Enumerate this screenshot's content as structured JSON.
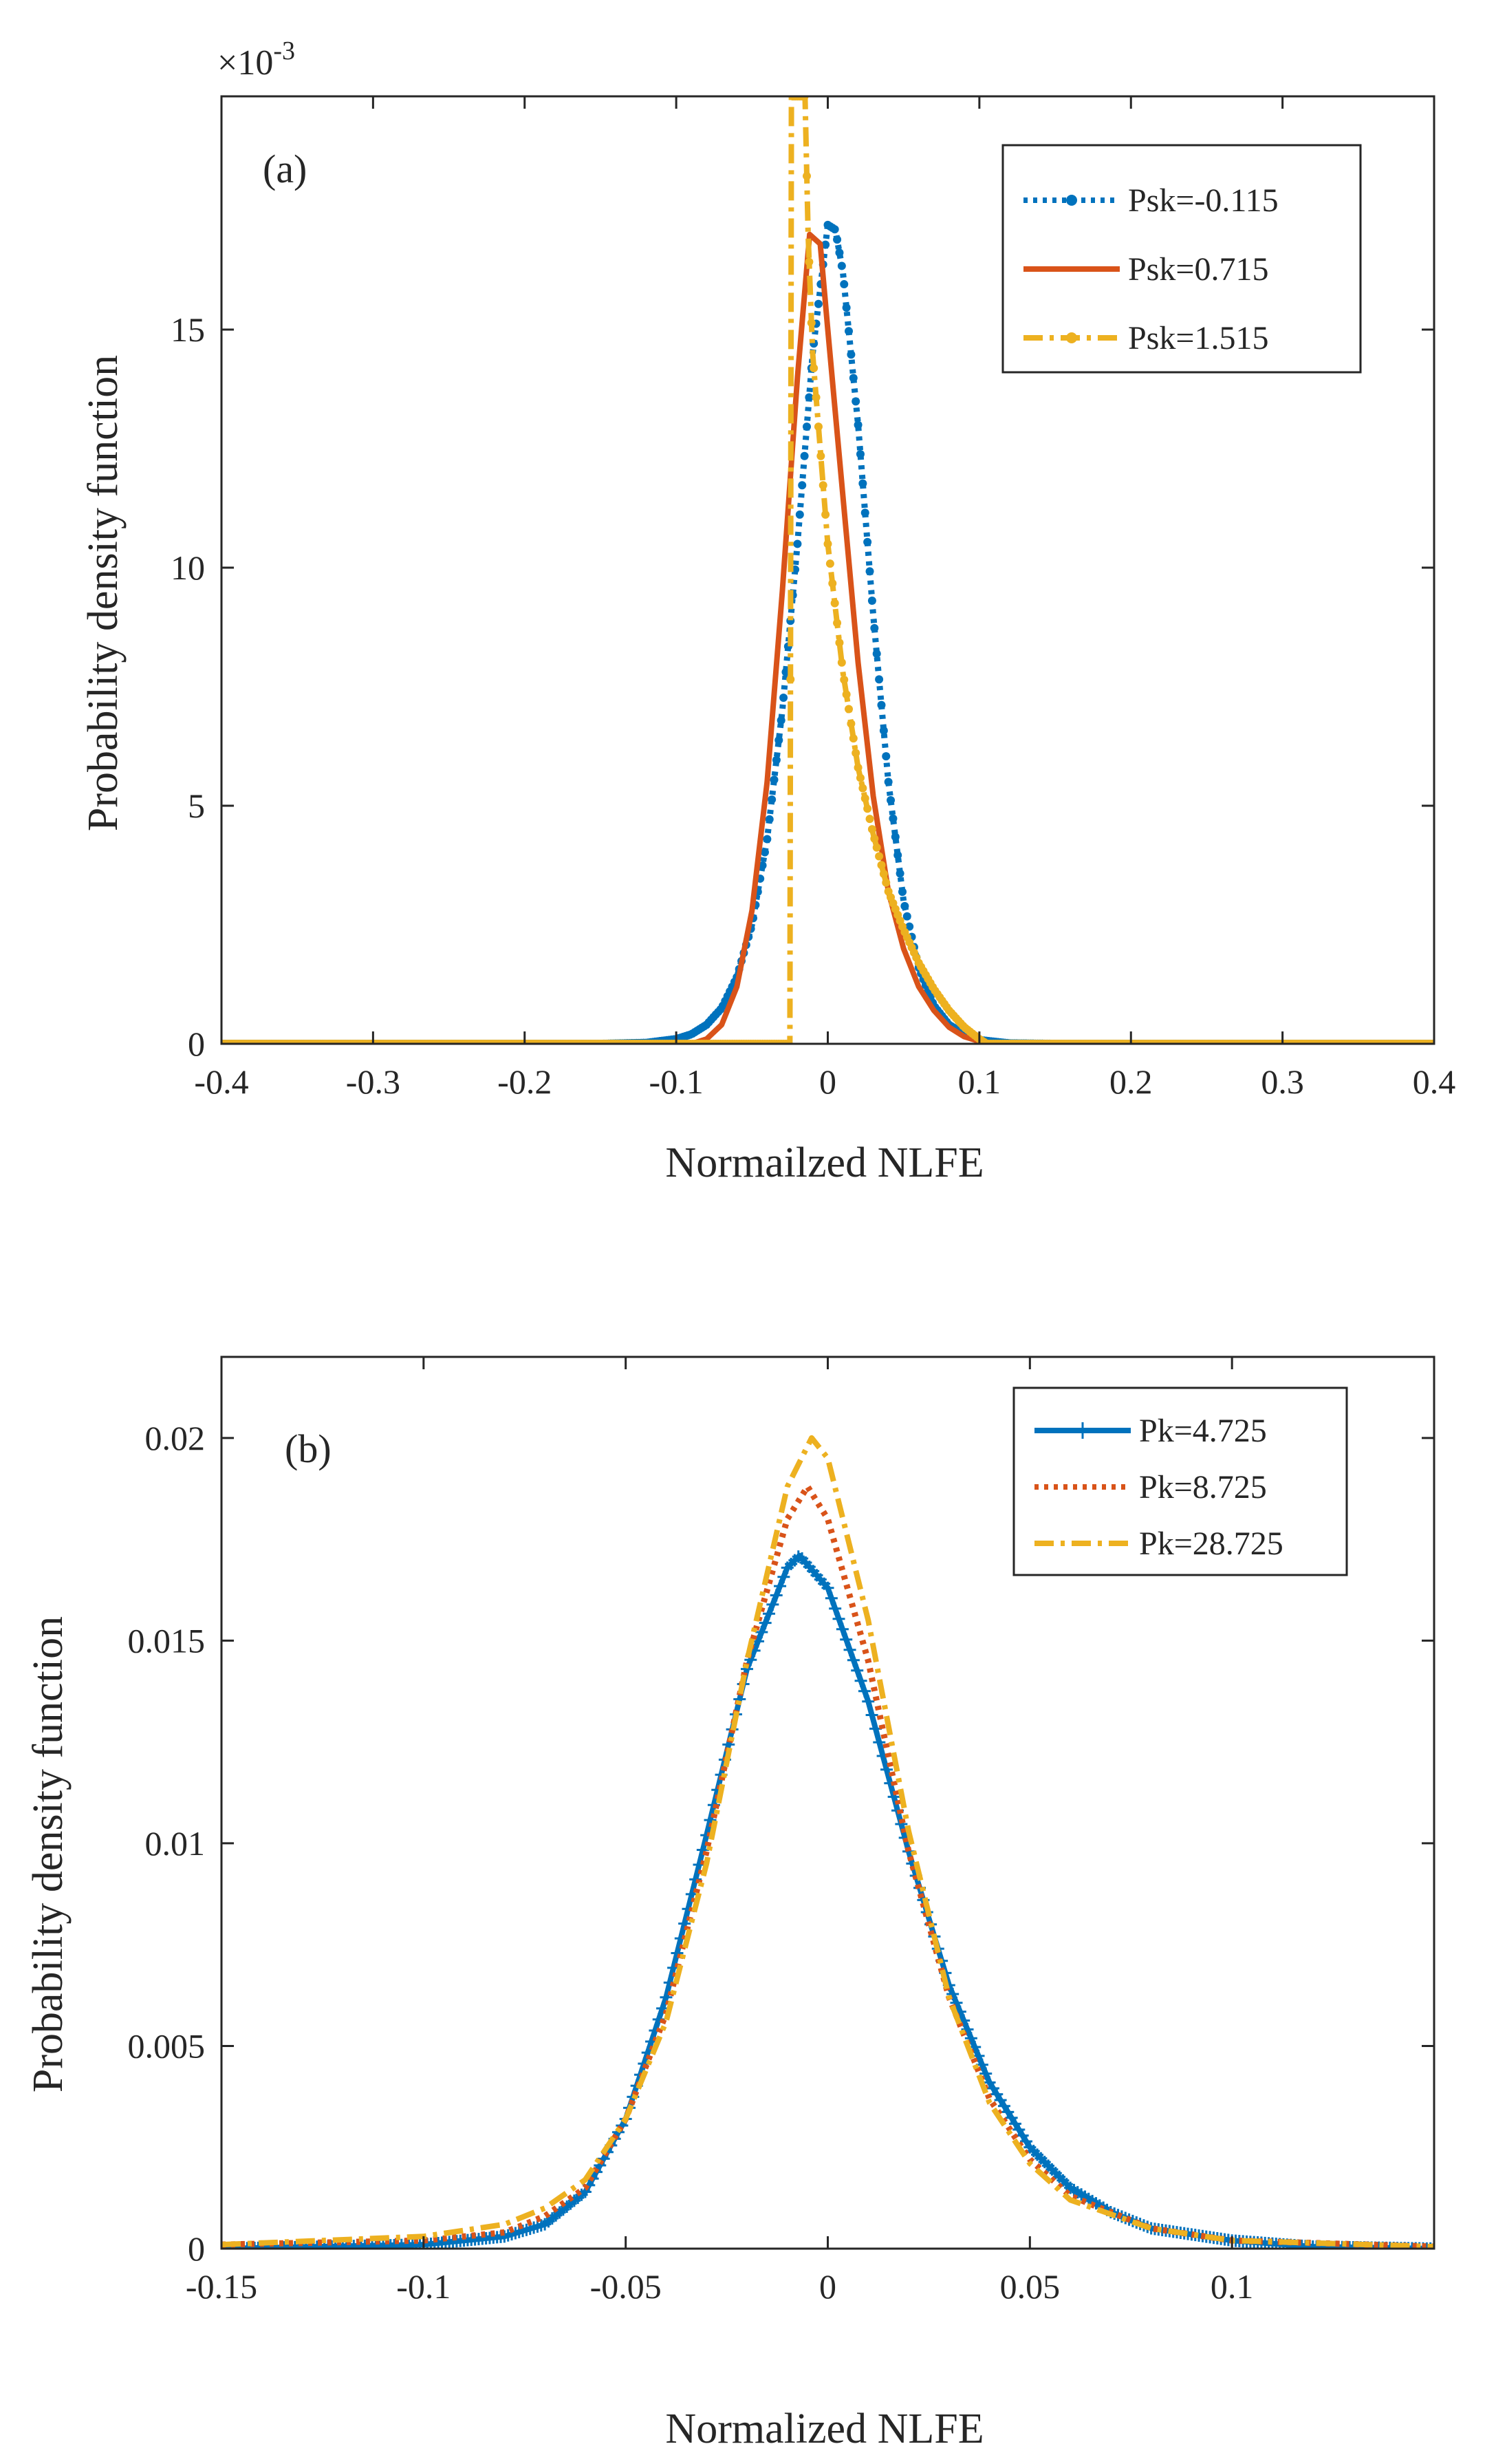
{
  "figure": {
    "panels": [
      {
        "id": "a",
        "panel_label": "(a)",
        "xlabel": "Normailzed NLFE",
        "ylabel": "Probability density function",
        "exponent_base": "×10",
        "exponent_power": "-3"
      },
      {
        "id": "b",
        "panel_label": "(b)",
        "xlabel": "Normalized NLFE",
        "ylabel": "Probability density function"
      }
    ]
  },
  "chart_data": [
    {
      "type": "line",
      "panel_label": "(a)",
      "xlabel": "Normailzed NLFE",
      "ylabel": "Probability density function",
      "y_exponent": "×10^-3",
      "xlim": [
        -0.4,
        0.4
      ],
      "ylim": [
        0,
        19.9
      ],
      "x_ticks": [
        -0.4,
        -0.3,
        -0.2,
        -0.1,
        0,
        0.1,
        0.2,
        0.3,
        0.4
      ],
      "x_tick_labels": [
        "-0.4",
        "-0.3",
        "-0.2",
        "-0.1",
        "0",
        "0.1",
        "0.2",
        "0.3",
        "0.4"
      ],
      "y_ticks": [
        0,
        5,
        10,
        15
      ],
      "y_tick_labels": [
        "0",
        "5",
        "10",
        "15"
      ],
      "grid": false,
      "legend_position": "top-right",
      "series": [
        {
          "name": "Psk=-0.115",
          "color": "#0072BD",
          "style": "dotted-with-markers",
          "points": [
            [
              -0.4,
              0
            ],
            [
              -0.15,
              0
            ],
            [
              -0.12,
              0.02
            ],
            [
              -0.1,
              0.1
            ],
            [
              -0.09,
              0.2
            ],
            [
              -0.08,
              0.4
            ],
            [
              -0.07,
              0.75
            ],
            [
              -0.06,
              1.4
            ],
            [
              -0.05,
              2.5
            ],
            [
              -0.04,
              4.3
            ],
            [
              -0.03,
              7.0
            ],
            [
              -0.02,
              10.5
            ],
            [
              -0.01,
              14.5
            ],
            [
              0,
              17.2
            ],
            [
              0.005,
              17.1
            ],
            [
              0.01,
              16.2
            ],
            [
              0.02,
              13.0
            ],
            [
              0.03,
              9.0
            ],
            [
              0.04,
              5.5
            ],
            [
              0.05,
              3.0
            ],
            [
              0.06,
              1.6
            ],
            [
              0.07,
              0.8
            ],
            [
              0.08,
              0.4
            ],
            [
              0.09,
              0.2
            ],
            [
              0.1,
              0.08
            ],
            [
              0.12,
              0.01
            ],
            [
              0.15,
              0
            ],
            [
              0.4,
              0
            ]
          ]
        },
        {
          "name": "Psk=0.715",
          "color": "#D95319",
          "style": "solid",
          "points": [
            [
              -0.4,
              0
            ],
            [
              -0.09,
              0
            ],
            [
              -0.08,
              0.1
            ],
            [
              -0.07,
              0.4
            ],
            [
              -0.06,
              1.2
            ],
            [
              -0.05,
              2.8
            ],
            [
              -0.04,
              5.5
            ],
            [
              -0.03,
              9.5
            ],
            [
              -0.02,
              14.0
            ],
            [
              -0.012,
              17.0
            ],
            [
              -0.005,
              16.8
            ],
            [
              0,
              15.0
            ],
            [
              0.01,
              11.5
            ],
            [
              0.02,
              8.0
            ],
            [
              0.03,
              5.2
            ],
            [
              0.04,
              3.2
            ],
            [
              0.05,
              2.0
            ],
            [
              0.06,
              1.2
            ],
            [
              0.07,
              0.7
            ],
            [
              0.08,
              0.35
            ],
            [
              0.09,
              0.15
            ],
            [
              0.1,
              0.05
            ],
            [
              0.11,
              0
            ],
            [
              0.4,
              0
            ]
          ]
        },
        {
          "name": "Psk=1.515",
          "color": "#EDB120",
          "style": "dashdot-with-markers",
          "points": [
            [
              -0.4,
              0
            ],
            [
              -0.025,
              0
            ],
            [
              -0.024,
              19.9
            ],
            [
              -0.015,
              19.9
            ],
            [
              -0.013,
              17.0
            ],
            [
              -0.01,
              14.5
            ],
            [
              -0.005,
              12.5
            ],
            [
              0,
              10.5
            ],
            [
              0.01,
              7.8
            ],
            [
              0.02,
              5.8
            ],
            [
              0.03,
              4.4
            ],
            [
              0.04,
              3.2
            ],
            [
              0.05,
              2.4
            ],
            [
              0.06,
              1.7
            ],
            [
              0.07,
              1.15
            ],
            [
              0.08,
              0.7
            ],
            [
              0.09,
              0.35
            ],
            [
              0.1,
              0.1
            ],
            [
              0.105,
              0
            ],
            [
              0.4,
              0
            ]
          ]
        }
      ]
    },
    {
      "type": "line",
      "panel_label": "(b)",
      "xlabel": "Normalized NLFE",
      "ylabel": "Probability density function",
      "xlim": [
        -0.15,
        0.15
      ],
      "ylim": [
        0,
        0.022
      ],
      "x_ticks": [
        -0.15,
        -0.1,
        -0.05,
        0,
        0.05,
        0.1
      ],
      "x_tick_labels": [
        "-0.15",
        "-0.1",
        "-0.05",
        "0",
        "0.05",
        "0.1"
      ],
      "y_ticks": [
        0,
        0.005,
        0.01,
        0.015,
        0.02
      ],
      "y_tick_labels": [
        "0",
        "0.005",
        "0.01",
        "0.015",
        "0.02"
      ],
      "grid": false,
      "legend_position": "top-right",
      "series": [
        {
          "name": "Pk=4.725",
          "color": "#0072BD",
          "style": "solid-with-plus-markers",
          "points": [
            [
              -0.15,
              0
            ],
            [
              -0.1,
              0.0001
            ],
            [
              -0.08,
              0.0003
            ],
            [
              -0.07,
              0.0006
            ],
            [
              -0.06,
              0.0014
            ],
            [
              -0.05,
              0.0032
            ],
            [
              -0.04,
              0.0062
            ],
            [
              -0.03,
              0.0102
            ],
            [
              -0.02,
              0.0143
            ],
            [
              -0.01,
              0.0168
            ],
            [
              -0.007,
              0.0171
            ],
            [
              0,
              0.0163
            ],
            [
              0.01,
              0.0135
            ],
            [
              0.02,
              0.0098
            ],
            [
              0.03,
              0.0065
            ],
            [
              0.04,
              0.0041
            ],
            [
              0.05,
              0.0025
            ],
            [
              0.06,
              0.0015
            ],
            [
              0.07,
              0.0009
            ],
            [
              0.08,
              0.0005
            ],
            [
              0.1,
              0.0002
            ],
            [
              0.12,
              5e-05
            ],
            [
              0.15,
              0
            ]
          ]
        },
        {
          "name": "Pk=8.725",
          "color": "#D95319",
          "style": "dotted",
          "points": [
            [
              -0.15,
              0.0001
            ],
            [
              -0.1,
              0.0002
            ],
            [
              -0.08,
              0.0004
            ],
            [
              -0.07,
              0.0008
            ],
            [
              -0.06,
              0.0015
            ],
            [
              -0.05,
              0.0032
            ],
            [
              -0.04,
              0.0058
            ],
            [
              -0.03,
              0.0098
            ],
            [
              -0.02,
              0.0145
            ],
            [
              -0.01,
              0.018
            ],
            [
              -0.005,
              0.0188
            ],
            [
              0,
              0.018
            ],
            [
              0.01,
              0.0145
            ],
            [
              0.02,
              0.0098
            ],
            [
              0.03,
              0.0062
            ],
            [
              0.04,
              0.0037
            ],
            [
              0.05,
              0.0022
            ],
            [
              0.06,
              0.0013
            ],
            [
              0.08,
              0.0005
            ],
            [
              0.1,
              0.0002
            ],
            [
              0.15,
              5e-05
            ]
          ]
        },
        {
          "name": "Pk=28.725",
          "color": "#EDB120",
          "style": "dashdot",
          "points": [
            [
              -0.15,
              0.0001
            ],
            [
              -0.1,
              0.0003
            ],
            [
              -0.08,
              0.0006
            ],
            [
              -0.07,
              0.001
            ],
            [
              -0.06,
              0.0017
            ],
            [
              -0.05,
              0.0032
            ],
            [
              -0.04,
              0.0056
            ],
            [
              -0.03,
              0.0095
            ],
            [
              -0.02,
              0.0145
            ],
            [
              -0.01,
              0.0188
            ],
            [
              -0.004,
              0.02
            ],
            [
              0,
              0.0195
            ],
            [
              0.01,
              0.0155
            ],
            [
              0.02,
              0.0103
            ],
            [
              0.03,
              0.0062
            ],
            [
              0.04,
              0.0036
            ],
            [
              0.05,
              0.0021
            ],
            [
              0.06,
              0.0012
            ],
            [
              0.08,
              0.0005
            ],
            [
              0.1,
              0.0002
            ],
            [
              0.15,
              5e-05
            ]
          ]
        }
      ]
    }
  ]
}
